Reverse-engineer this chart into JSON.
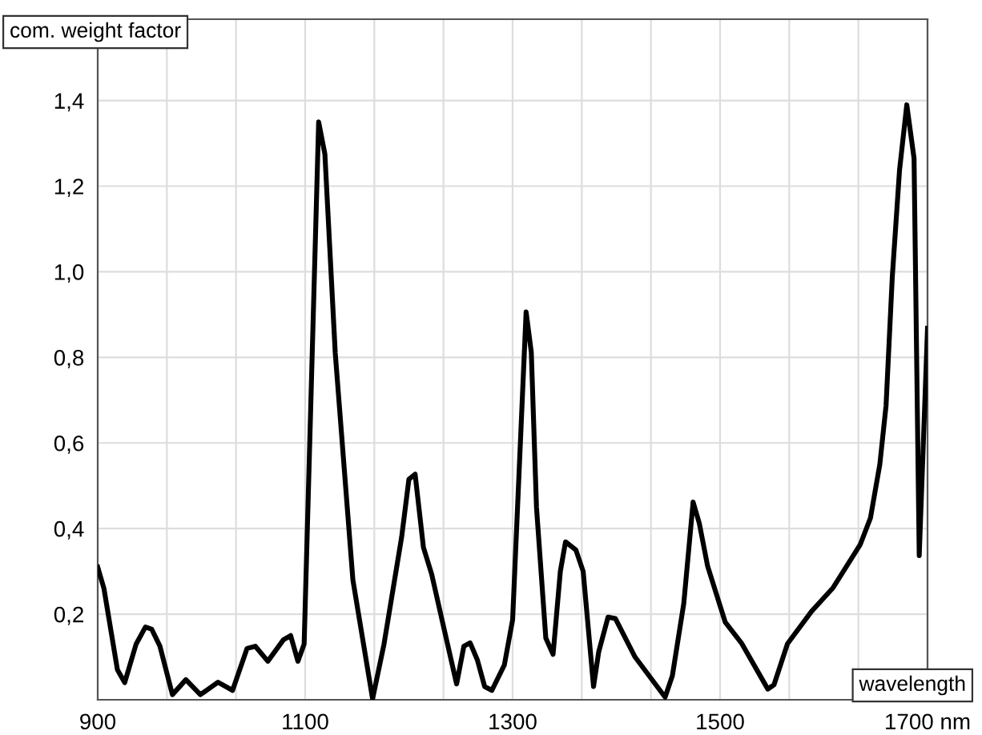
{
  "chart_data": {
    "type": "line",
    "xlabel": "wavelength",
    "ylabel": "com. weight factor",
    "x": [
      900,
      906,
      919,
      926,
      937,
      946,
      952,
      960,
      972,
      985,
      999,
      1016,
      1030,
      1044,
      1052,
      1064,
      1079,
      1086,
      1093,
      1099,
      1113,
      1119,
      1129,
      1146,
      1165,
      1176,
      1193,
      1200,
      1206,
      1214,
      1222,
      1233,
      1246,
      1253,
      1259,
      1266,
      1273,
      1280,
      1292,
      1300,
      1313,
      1318,
      1323,
      1332,
      1339,
      1346,
      1351,
      1361,
      1368,
      1378,
      1383,
      1392,
      1399,
      1418,
      1447,
      1454,
      1465,
      1474,
      1480,
      1488,
      1505,
      1521,
      1546,
      1552,
      1565,
      1588,
      1609,
      1635,
      1645,
      1654,
      1660,
      1666,
      1673,
      1680,
      1687,
      1692,
      1700
    ],
    "series": [
      {
        "color": "#000000",
        "values": [
          0.31,
          0.26,
          0.07,
          0.04,
          0.13,
          0.17,
          0.165,
          0.125,
          0.012,
          0.047,
          0.012,
          0.041,
          0.022,
          0.12,
          0.125,
          0.09,
          0.14,
          0.15,
          0.09,
          0.13,
          1.35,
          1.275,
          0.81,
          0.28,
          0.002,
          0.13,
          0.38,
          0.515,
          0.527,
          0.356,
          0.293,
          0.175,
          0.037,
          0.125,
          0.133,
          0.093,
          0.031,
          0.022,
          0.081,
          0.187,
          0.906,
          0.812,
          0.45,
          0.144,
          0.106,
          0.3,
          0.369,
          0.35,
          0.3,
          0.031,
          0.112,
          0.193,
          0.19,
          0.1,
          0.006,
          0.056,
          0.225,
          0.462,
          0.412,
          0.312,
          0.181,
          0.131,
          0.025,
          0.035,
          0.131,
          0.206,
          0.262,
          0.362,
          0.425,
          0.55,
          0.687,
          0.987,
          1.237,
          1.39,
          1.265,
          0.337,
          0.868
        ]
      }
    ],
    "xlim": [
      900,
      1700
    ],
    "ylim": [
      0,
      1.59
    ],
    "xticks": [
      900,
      {
        "value": 966.67,
        "label": null
      },
      {
        "value": 1033.33,
        "label": null
      },
      1100,
      {
        "value": 1166.67,
        "label": null
      },
      {
        "value": 1233.33,
        "label": null
      },
      1300,
      {
        "value": 1366.67,
        "label": null
      },
      {
        "value": 1433.33,
        "label": null
      },
      1500,
      {
        "value": 1566.67,
        "label": null
      },
      {
        "value": 1633.33,
        "label": null
      },
      {
        "value": 1700,
        "label": "1700 nm"
      }
    ],
    "yticks": [
      {
        "value": 0.2,
        "label": "0,2"
      },
      {
        "value": 0.4,
        "label": "0,4"
      },
      {
        "value": 0.6,
        "label": "0,6"
      },
      {
        "value": 0.8,
        "label": "0,8"
      },
      {
        "value": 1.0,
        "label": "1,0"
      },
      {
        "value": 1.2,
        "label": "1,2"
      },
      {
        "value": 1.4,
        "label": "1,4"
      }
    ],
    "grid": true,
    "line_style": "solid",
    "marker": "none"
  }
}
